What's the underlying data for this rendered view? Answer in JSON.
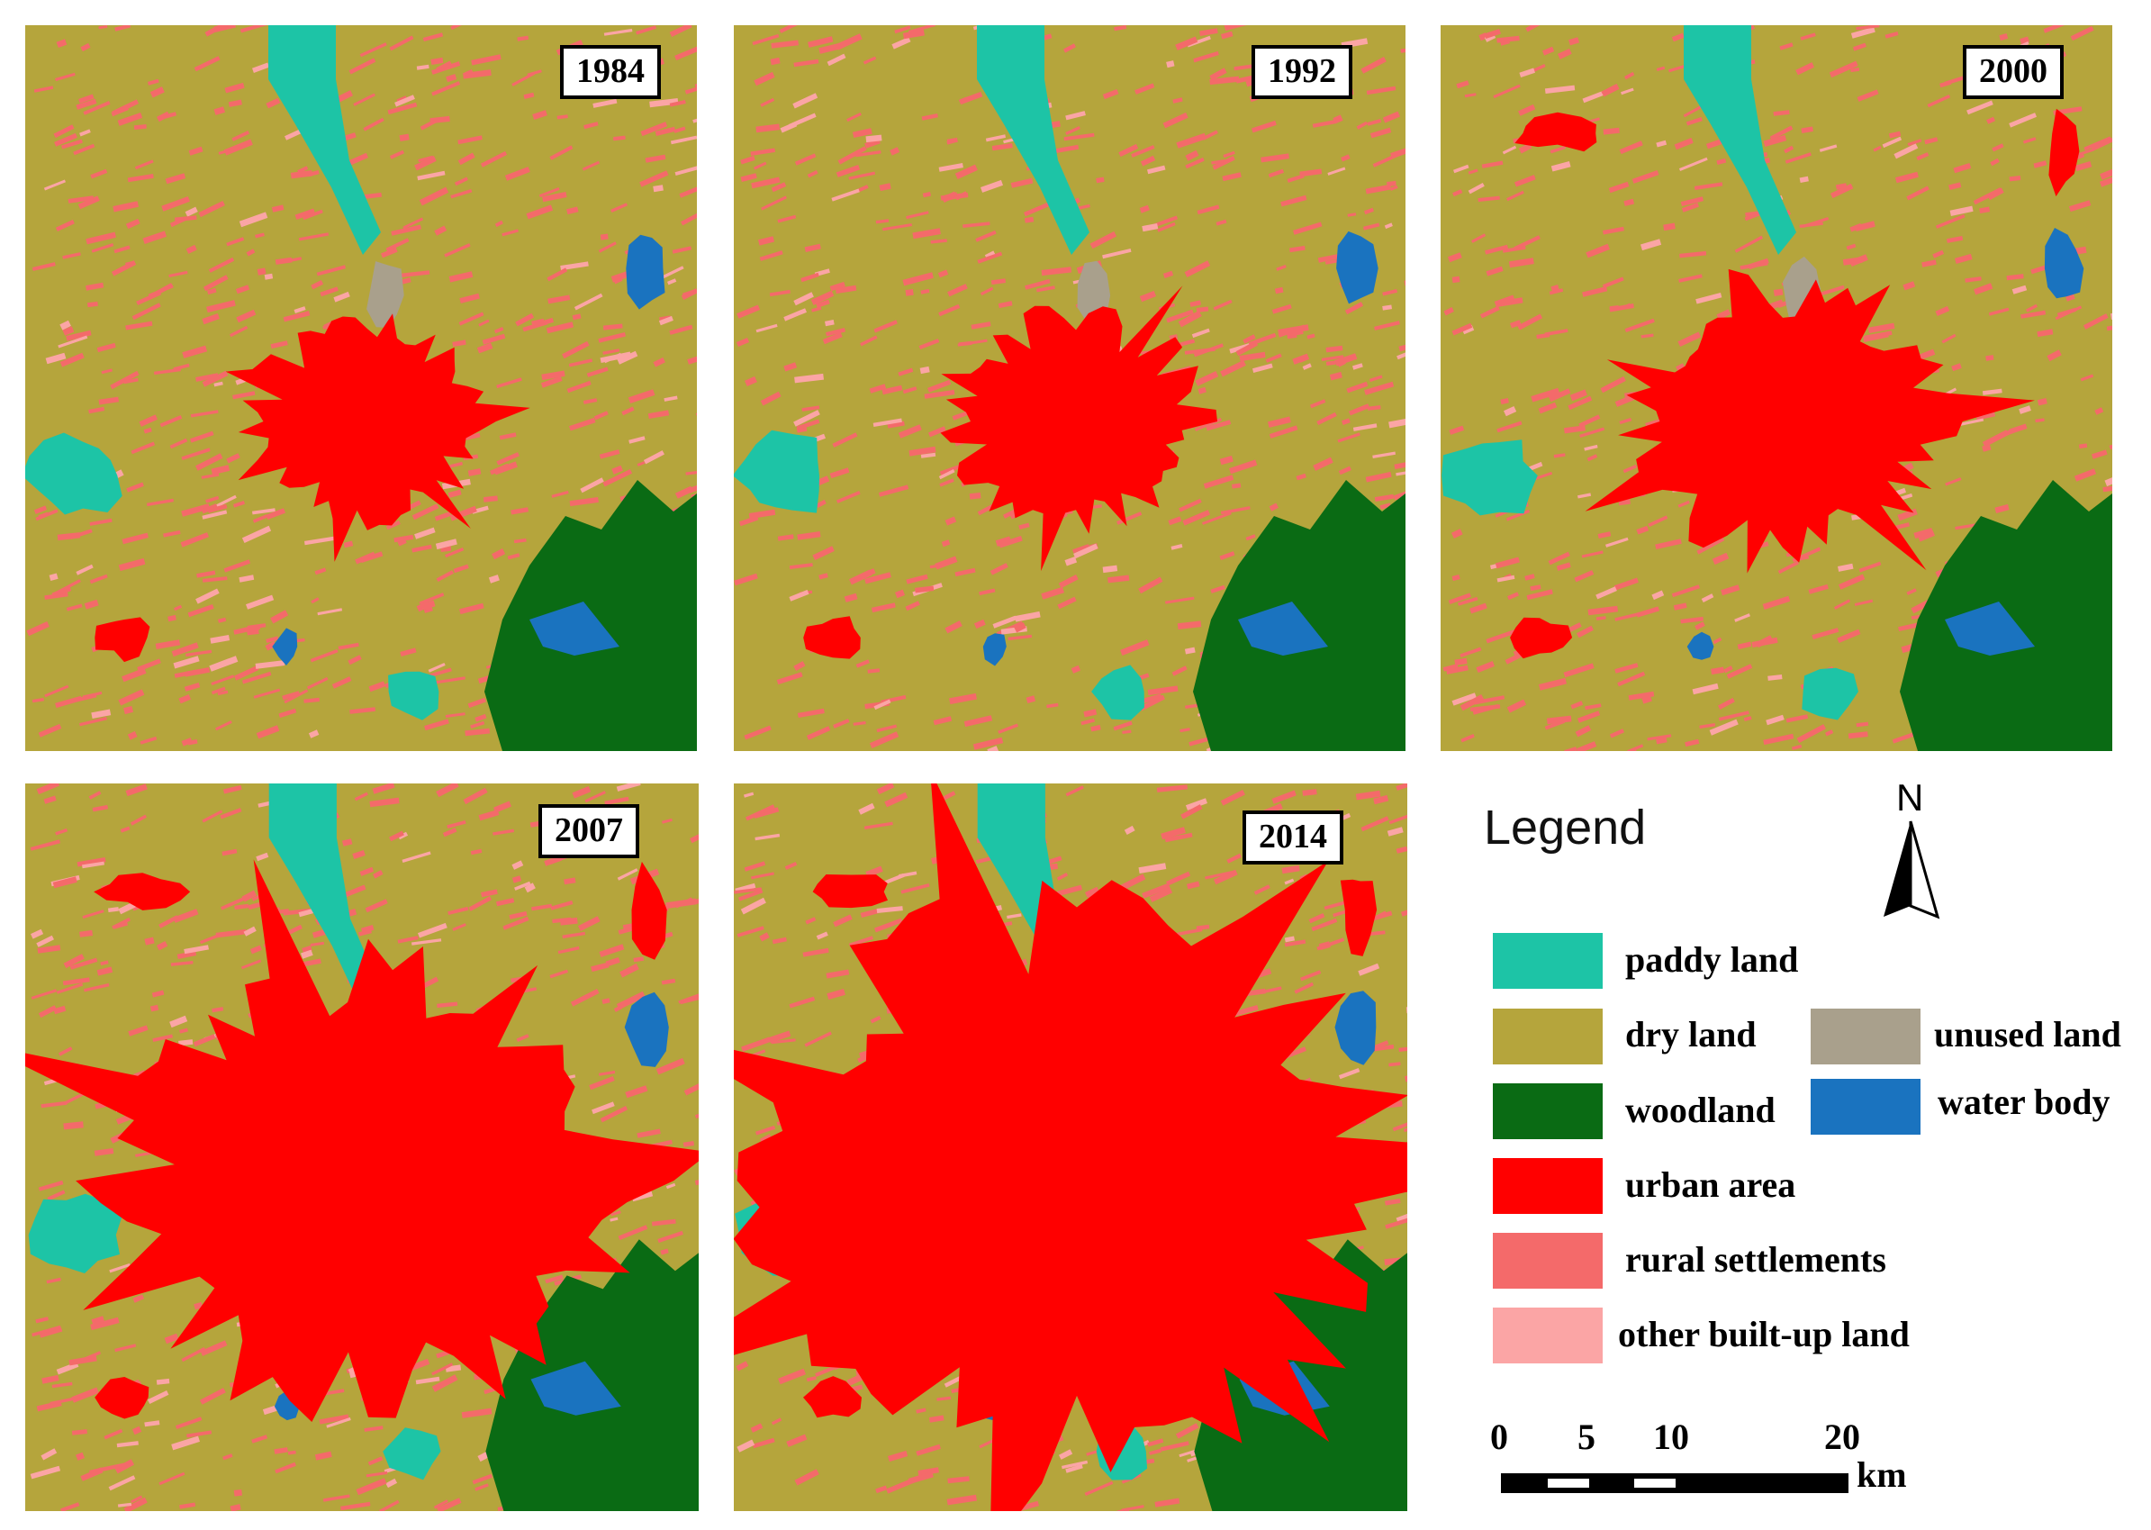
{
  "panels": [
    {
      "id": "map-1984",
      "year": "1984"
    },
    {
      "id": "map-1992",
      "year": "1992"
    },
    {
      "id": "map-2000",
      "year": "2000"
    },
    {
      "id": "map-2007",
      "year": "2007"
    },
    {
      "id": "map-2014",
      "year": "2014"
    }
  ],
  "legend": {
    "title": "Legend",
    "items": [
      {
        "label": "paddy land",
        "color": "#1DC4A6"
      },
      {
        "label": "dry land",
        "color": "#B5A53C"
      },
      {
        "label": "woodland",
        "color": "#0A6B14"
      },
      {
        "label": "urban area",
        "color": "#FF0000"
      },
      {
        "label": "rural settlements",
        "color": "#F46A6A"
      },
      {
        "label": "other built-up land",
        "color": "#FBA5A5"
      },
      {
        "label": "unused land",
        "color": "#A9A08C"
      },
      {
        "label": "water body",
        "color": "#1A73BF"
      }
    ]
  },
  "north_arrow": {
    "label": "N"
  },
  "scale_bar": {
    "ticks": [
      "0",
      "5",
      "10",
      "20"
    ],
    "unit": "km"
  }
}
